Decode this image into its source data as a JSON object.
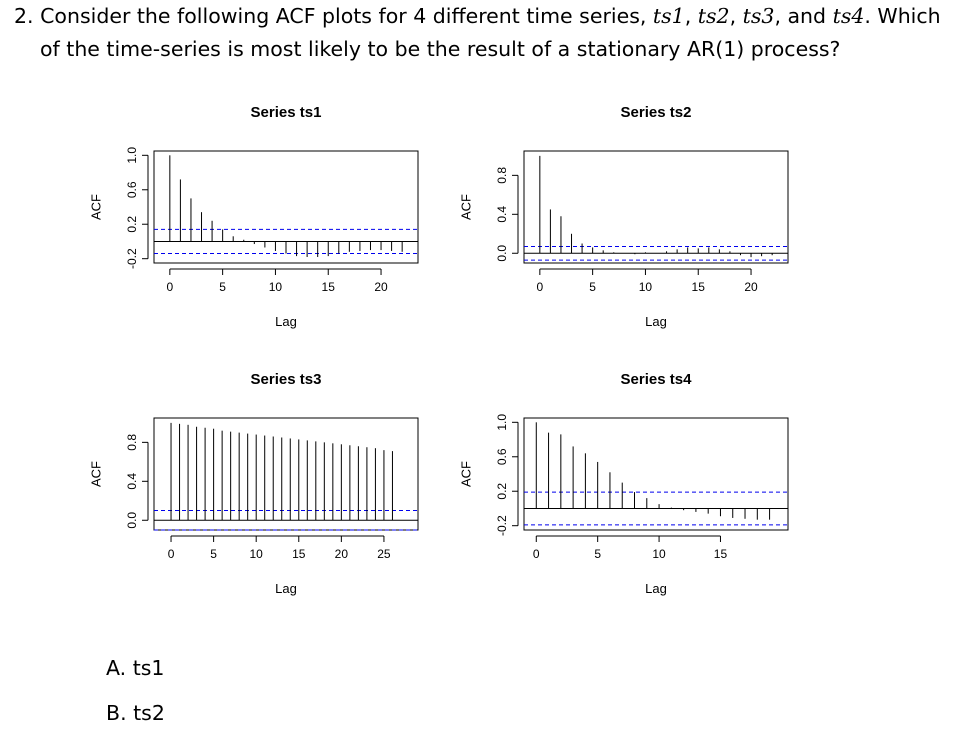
{
  "question": {
    "number": "2.",
    "text_a": "Consider the following ACF plots for 4 different time series, ",
    "series_names": [
      "ts1",
      "ts2",
      "ts3",
      "ts4"
    ],
    "sep1": ", ",
    "sep2": ", ",
    "sep3": ", and ",
    "text_b": ". Which",
    "line2": "of the time-series is most likely to be the result of a stationary AR(1) process?"
  },
  "options": [
    {
      "letter": "A.",
      "label": "ts1"
    },
    {
      "letter": "B.",
      "label": "ts2"
    }
  ],
  "colors": {
    "line": "#000000",
    "confidence": "#0000ee"
  },
  "chart_data": [
    {
      "type": "bar",
      "title": "Series ts1",
      "xlabel": "Lag",
      "ylabel": "ACF",
      "xlim": [
        -1.5,
        23.5
      ],
      "ylim": [
        -0.25,
        1.05
      ],
      "xticks": [
        0,
        5,
        10,
        15,
        20
      ],
      "yticks": [
        -0.2,
        0.2,
        0.6,
        1.0
      ],
      "ytick_labels": [
        "-0.2",
        "0.2",
        "0.6",
        "1.0"
      ],
      "confidence": [
        0.14,
        -0.14
      ],
      "lags": [
        0,
        1,
        2,
        3,
        4,
        5,
        6,
        7,
        8,
        9,
        10,
        11,
        12,
        13,
        14,
        15,
        16,
        17,
        18,
        19,
        20,
        21,
        22
      ],
      "values": [
        1.0,
        0.72,
        0.5,
        0.34,
        0.24,
        0.14,
        0.06,
        0.02,
        -0.03,
        -0.07,
        -0.11,
        -0.14,
        -0.17,
        -0.18,
        -0.18,
        -0.17,
        -0.14,
        -0.12,
        -0.11,
        -0.1,
        -0.1,
        -0.11,
        -0.12
      ]
    },
    {
      "type": "bar",
      "title": "Series ts2",
      "xlabel": "Lag",
      "ylabel": "ACF",
      "xlim": [
        -1.5,
        23.5
      ],
      "ylim": [
        -0.1,
        1.05
      ],
      "xticks": [
        0,
        5,
        10,
        15,
        20
      ],
      "yticks": [
        0.0,
        0.4,
        0.8
      ],
      "ytick_labels": [
        "0.0",
        "0.4",
        "0.8"
      ],
      "confidence": [
        0.07,
        -0.07
      ],
      "lags": [
        0,
        1,
        2,
        3,
        4,
        5,
        6,
        7,
        8,
        9,
        10,
        11,
        12,
        13,
        14,
        15,
        16,
        17,
        18,
        19,
        20,
        21,
        22
      ],
      "values": [
        1.0,
        0.45,
        0.38,
        0.2,
        0.1,
        0.06,
        0.03,
        0.01,
        0.0,
        -0.01,
        0.01,
        0.0,
        0.02,
        0.04,
        0.06,
        0.05,
        0.06,
        0.04,
        0.02,
        -0.02,
        -0.04,
        -0.03,
        -0.02
      ]
    },
    {
      "type": "bar",
      "title": "Series ts3",
      "xlabel": "Lag",
      "ylabel": "ACF",
      "xlim": [
        -2,
        29
      ],
      "ylim": [
        -0.1,
        1.05
      ],
      "xticks": [
        0,
        5,
        10,
        15,
        20,
        25
      ],
      "yticks": [
        0.0,
        0.4,
        0.8
      ],
      "ytick_labels": [
        "0.0",
        "0.4",
        "0.8"
      ],
      "confidence": [
        0.1,
        -0.1
      ],
      "lags": [
        0,
        1,
        2,
        3,
        4,
        5,
        6,
        7,
        8,
        9,
        10,
        11,
        12,
        13,
        14,
        15,
        16,
        17,
        18,
        19,
        20,
        21,
        22,
        23,
        24,
        25,
        26
      ],
      "values": [
        1.0,
        0.99,
        0.98,
        0.96,
        0.95,
        0.94,
        0.92,
        0.91,
        0.9,
        0.89,
        0.88,
        0.87,
        0.86,
        0.85,
        0.84,
        0.83,
        0.82,
        0.81,
        0.8,
        0.79,
        0.78,
        0.77,
        0.76,
        0.75,
        0.74,
        0.72,
        0.71
      ]
    },
    {
      "type": "bar",
      "title": "Series ts4",
      "xlabel": "Lag",
      "ylabel": "ACF",
      "xlim": [
        -1,
        20.5
      ],
      "ylim": [
        -0.25,
        1.05
      ],
      "xticks": [
        0,
        5,
        10,
        15
      ],
      "yticks": [
        -0.2,
        0.2,
        0.6,
        1.0
      ],
      "ytick_labels": [
        "-0.2",
        "0.2",
        "0.6",
        "1.0"
      ],
      "confidence": [
        0.19,
        -0.19
      ],
      "lags": [
        0,
        1,
        2,
        3,
        4,
        5,
        6,
        7,
        8,
        9,
        10,
        11,
        12,
        13,
        14,
        15,
        16,
        17,
        18,
        19
      ],
      "values": [
        1.0,
        0.88,
        0.86,
        0.72,
        0.64,
        0.54,
        0.42,
        0.3,
        0.19,
        0.12,
        0.05,
        0.01,
        -0.02,
        -0.04,
        -0.06,
        -0.09,
        -0.11,
        -0.12,
        -0.13,
        -0.13
      ]
    }
  ]
}
